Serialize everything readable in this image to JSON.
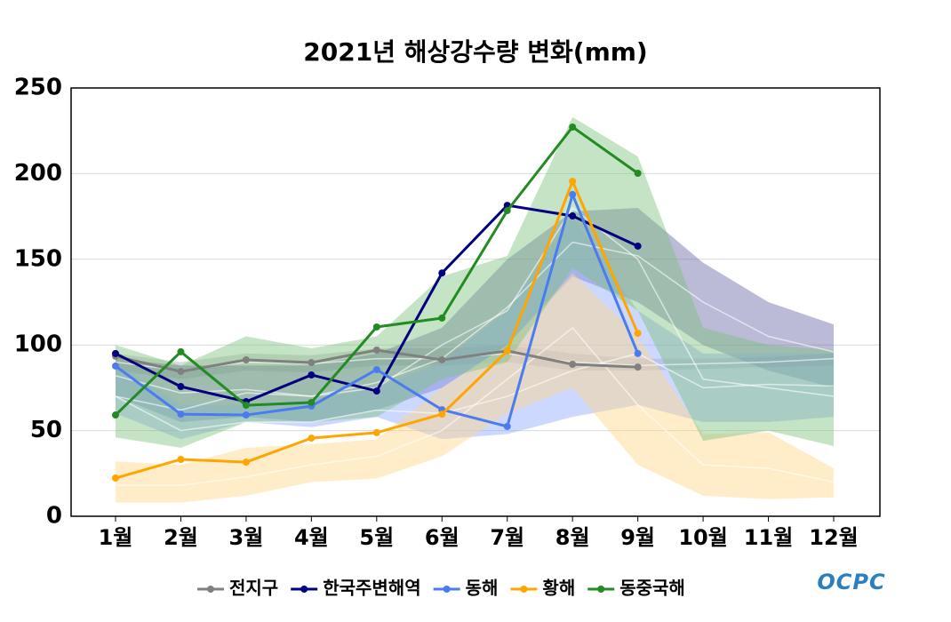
{
  "chart_data": {
    "type": "line",
    "title": "2021년 해상강수량 변화(mm)",
    "logo": "OCPC",
    "categories": [
      "1월",
      "2월",
      "3월",
      "4월",
      "5월",
      "6월",
      "7월",
      "8월",
      "9월",
      "10월",
      "11월",
      "12월"
    ],
    "ylim": [
      0,
      250
    ],
    "yticks": [
      0,
      50,
      100,
      150,
      200,
      250
    ],
    "grid": true,
    "legend": "bottom",
    "series": [
      {
        "name": "전지구",
        "color": "#808080",
        "band_color": "#b0b0b0",
        "values": [
          93.4,
          84.5,
          91.3,
          89.7,
          97,
          91.3,
          96.5,
          88.7,
          87.1,
          null,
          null,
          null
        ],
        "band": {
          "lower": [
            85,
            80,
            85,
            84,
            88,
            88,
            90,
            85,
            85,
            86,
            87,
            88
          ],
          "upper": [
            95,
            90,
            95,
            94,
            98,
            98,
            100,
            95,
            92,
            92,
            93,
            95
          ],
          "mean": [
            90,
            85,
            90,
            89,
            92,
            92,
            95,
            90,
            88,
            89,
            90,
            92
          ]
        }
      },
      {
        "name": "한국주변해역",
        "color": "#000080",
        "band_color": "#6868a8",
        "values": [
          95,
          75.7,
          66.9,
          82.5,
          73.1,
          142,
          181.5,
          175.3,
          157.7,
          null,
          null,
          null
        ],
        "band": {
          "lower": [
            70,
            55,
            58,
            55,
            62,
            75,
            100,
            140,
            125,
            100,
            85,
            75
          ],
          "upper": [
            92,
            88,
            88,
            88,
            95,
            110,
            150,
            178,
            180,
            148,
            125,
            112
          ],
          "mean": [
            82,
            72,
            74,
            70,
            78,
            92,
            122,
            160,
            152,
            125,
            105,
            96
          ]
        }
      },
      {
        "name": "동해",
        "color": "#4a7cf0",
        "band_color": "#8ea8ff",
        "values": [
          87.7,
          59.6,
          59.1,
          64.3,
          85.6,
          62.2,
          52.4,
          187.8,
          95,
          null,
          null,
          null
        ],
        "band": {
          "lower": [
            60,
            45,
            55,
            52,
            58,
            45,
            48,
            58,
            65,
            55,
            55,
            58
          ],
          "upper": [
            90,
            65,
            65,
            68,
            75,
            90,
            120,
            175,
            120,
            95,
            95,
            95
          ],
          "mean": [
            70,
            50,
            55,
            55,
            62,
            60,
            70,
            85,
            95,
            75,
            77,
            76
          ]
        }
      },
      {
        "name": "황해",
        "color": "#ffa500",
        "band_color": "#ffd88a",
        "values": [
          22.3,
          33.2,
          31.6,
          45.6,
          48.8,
          59.6,
          96.5,
          195.5,
          106.8,
          null,
          null,
          null
        ],
        "band": {
          "lower": [
            8,
            8,
            12,
            20,
            22,
            35,
            60,
            75,
            30,
            12,
            10,
            11
          ],
          "upper": [
            32,
            30,
            40,
            42,
            45,
            75,
            100,
            142,
            105,
            48,
            49,
            28
          ],
          "mean": [
            18,
            18,
            23,
            30,
            35,
            50,
            80,
            110,
            65,
            30,
            28,
            20
          ]
        }
      },
      {
        "name": "동중국해",
        "color": "#228b22",
        "band_color": "#7fc07f",
        "values": [
          59.1,
          96,
          64.8,
          66.4,
          110.5,
          115.7,
          178.4,
          227.2,
          200.2,
          null,
          null,
          null
        ],
        "band": {
          "lower": [
            46,
            40,
            55,
            55,
            58,
            80,
            90,
            145,
            120,
            44,
            50,
            41
          ],
          "upper": [
            100,
            88,
            105,
            98,
            105,
            140,
            152,
            233,
            210,
            110,
            100,
            97
          ],
          "mean": [
            70,
            62,
            72,
            70,
            75,
            100,
            120,
            180,
            150,
            80,
            75,
            70
          ]
        }
      }
    ]
  }
}
